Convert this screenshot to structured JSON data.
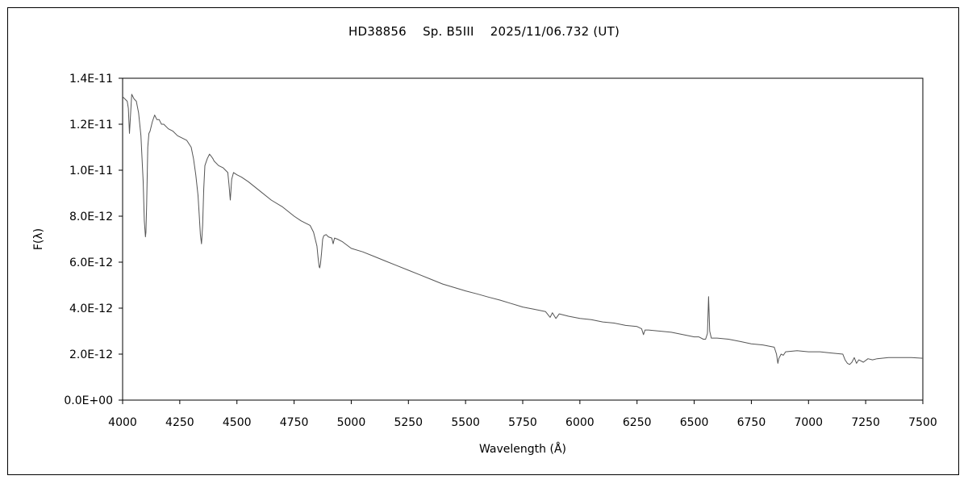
{
  "chart_data": {
    "type": "line",
    "title": "HD38856　 Sp. B5III　 2025/11/06.732 (UT)",
    "xlabel": "Wavelength (Å)",
    "ylabel": "F(λ)",
    "xlim": [
      4000,
      7500
    ],
    "ylim": [
      0,
      1.4e-11
    ],
    "grid": false,
    "legend": "none",
    "x_ticks": [
      4000,
      4250,
      4500,
      4750,
      5000,
      5250,
      5500,
      5750,
      6000,
      6250,
      6500,
      6750,
      7000,
      7250,
      7500
    ],
    "x_tick_labels": [
      "4000",
      "4250",
      "4500",
      "4750",
      "5000",
      "5250",
      "5500",
      "5750",
      "6000",
      "6250",
      "6500",
      "6750",
      "7000",
      "7250",
      "7500"
    ],
    "y_ticks": [
      0,
      2e-12,
      4e-12,
      6e-12,
      8e-12,
      1e-11,
      1.2e-11,
      1.4e-11
    ],
    "y_tick_labels": [
      "0.0E+00",
      "2.0E-12",
      "4.0E-12",
      "6.0E-12",
      "8.0E-12",
      "1.0E-11",
      "1.2E-11",
      "1.4E-11"
    ],
    "line_color": "#555555",
    "series": [
      {
        "x": [
          4000,
          4010,
          4020,
          4025,
          4030,
          4040,
          4050,
          4060,
          4070,
          4080,
          4090,
          4095,
          4100,
          4102,
          4105,
          4110,
          4115,
          4120,
          4130,
          4140,
          4150,
          4160,
          4170,
          4180,
          4200,
          4220,
          4240,
          4260,
          4280,
          4300,
          4310,
          4320,
          4330,
          4335,
          4340,
          4345,
          4350,
          4355,
          4360,
          4370,
          4380,
          4388,
          4395,
          4400,
          4420,
          4440,
          4460,
          4465,
          4471,
          4477,
          4485,
          4500,
          4520,
          4550,
          4600,
          4650,
          4700,
          4750,
          4780,
          4800,
          4820,
          4835,
          4850,
          4855,
          4860,
          4862,
          4865,
          4870,
          4875,
          4880,
          4890,
          4900,
          4915,
          4921,
          4927,
          4940,
          4960,
          5000,
          5050,
          5100,
          5150,
          5200,
          5250,
          5300,
          5350,
          5400,
          5450,
          5500,
          5550,
          5600,
          5650,
          5700,
          5750,
          5800,
          5850,
          5870,
          5880,
          5895,
          5910,
          5950,
          6000,
          6050,
          6100,
          6150,
          6200,
          6250,
          6270,
          6278,
          6285,
          6300,
          6350,
          6400,
          6450,
          6500,
          6520,
          6540,
          6550,
          6558,
          6563,
          6568,
          6575,
          6600,
          6650,
          6700,
          6750,
          6800,
          6850,
          6860,
          6866,
          6870,
          6880,
          6890,
          6900,
          6950,
          7000,
          7050,
          7100,
          7150,
          7160,
          7170,
          7180,
          7190,
          7200,
          7210,
          7220,
          7240,
          7260,
          7280,
          7300,
          7350,
          7400,
          7450,
          7500
        ],
        "values": [
          1.32e-11,
          1.31e-11,
          1.3e-11,
          1.27e-11,
          1.16e-11,
          1.33e-11,
          1.31e-11,
          1.3e-11,
          1.25e-11,
          1.15e-11,
          9.5e-12,
          7.8e-12,
          7.1e-12,
          7.3e-12,
          8.5e-12,
          1.1e-11,
          1.16e-11,
          1.17e-11,
          1.21e-11,
          1.24e-11,
          1.22e-11,
          1.22e-11,
          1.2e-11,
          1.2e-11,
          1.18e-11,
          1.17e-11,
          1.15e-11,
          1.14e-11,
          1.13e-11,
          1.1e-11,
          1.05e-11,
          9.8e-12,
          8.9e-12,
          8.1e-12,
          7.2e-12,
          6.8e-12,
          7.6e-12,
          9.2e-12,
          1.02e-11,
          1.05e-11,
          1.07e-11,
          1.06e-11,
          1.05e-11,
          1.04e-11,
          1.02e-11,
          1.01e-11,
          9.9e-12,
          9.4e-12,
          8.7e-12,
          9.6e-12,
          9.9e-12,
          9.8e-12,
          9.7e-12,
          9.5e-12,
          9.1e-12,
          8.7e-12,
          8.4e-12,
          8e-12,
          7.8e-12,
          7.7e-12,
          7.6e-12,
          7.3e-12,
          6.7e-12,
          6.2e-12,
          5.8e-12,
          5.75e-12,
          5.9e-12,
          6.4e-12,
          7e-12,
          7.15e-12,
          7.2e-12,
          7.1e-12,
          7.05e-12,
          6.8e-12,
          7.05e-12,
          7e-12,
          6.9e-12,
          6.6e-12,
          6.45e-12,
          6.25e-12,
          6.05e-12,
          5.85e-12,
          5.65e-12,
          5.45e-12,
          5.25e-12,
          5.05e-12,
          4.9e-12,
          4.75e-12,
          4.62e-12,
          4.48e-12,
          4.35e-12,
          4.2e-12,
          4.05e-12,
          3.95e-12,
          3.85e-12,
          3.6e-12,
          3.8e-12,
          3.55e-12,
          3.75e-12,
          3.65e-12,
          3.55e-12,
          3.5e-12,
          3.4e-12,
          3.35e-12,
          3.25e-12,
          3.2e-12,
          3.1e-12,
          2.85e-12,
          3.05e-12,
          3.05e-12,
          3e-12,
          2.95e-12,
          2.85e-12,
          2.75e-12,
          2.75e-12,
          2.65e-12,
          2.65e-12,
          2.9e-12,
          4.5e-12,
          3e-12,
          2.7e-12,
          2.7e-12,
          2.65e-12,
          2.55e-12,
          2.45e-12,
          2.4e-12,
          2.3e-12,
          2e-12,
          1.6e-12,
          1.8e-12,
          2e-12,
          1.95e-12,
          2.1e-12,
          2.15e-12,
          2.1e-12,
          2.1e-12,
          2.05e-12,
          2e-12,
          1.75e-12,
          1.6e-12,
          1.55e-12,
          1.65e-12,
          1.85e-12,
          1.6e-12,
          1.75e-12,
          1.65e-12,
          1.8e-12,
          1.75e-12,
          1.8e-12,
          1.85e-12,
          1.85e-12,
          1.85e-12,
          1.82e-12
        ]
      }
    ]
  }
}
